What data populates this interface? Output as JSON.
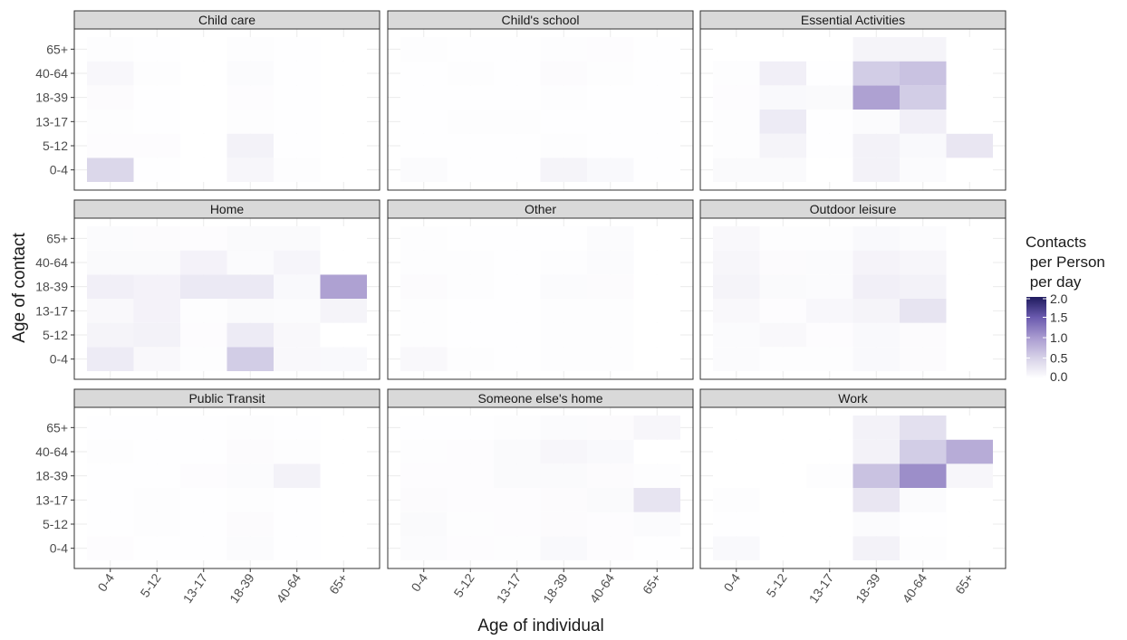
{
  "chart_data": {
    "type": "heatmap",
    "xlabel": "Age of individual",
    "ylabel": "Age of contact",
    "age_groups": [
      "0-4",
      "5-12",
      "13-17",
      "18-39",
      "40-64",
      "65+"
    ],
    "value_range": [
      0,
      2
    ],
    "legend": {
      "title_lines": [
        "Contacts",
        " per Person",
        " per day"
      ],
      "ticks": [
        "2.0",
        "1.5",
        "1.0",
        "0.5",
        "0.0"
      ],
      "tick_values": [
        2.0,
        1.5,
        1.0,
        0.5,
        0.0
      ],
      "low_color": "#ffffff",
      "high_color": "#1f1b5e"
    },
    "grid": true,
    "facets": [
      {
        "title": "Child care",
        "z": [
          [
            0.45,
            0.01,
            0.0,
            0.1,
            0.02,
            0.0
          ],
          [
            0.03,
            0.03,
            0.0,
            0.15,
            0.01,
            0.0
          ],
          [
            0.02,
            0.01,
            0.0,
            0.02,
            0.01,
            0.0
          ],
          [
            0.04,
            0.01,
            0.0,
            0.03,
            0.01,
            0.0
          ],
          [
            0.09,
            0.02,
            0.0,
            0.05,
            0.01,
            0.0
          ],
          [
            0.02,
            0.01,
            0.0,
            0.02,
            0.01,
            0.0
          ]
        ]
      },
      {
        "title": "Child's school",
        "z": [
          [
            0.05,
            0.01,
            0.01,
            0.12,
            0.07,
            0.01
          ],
          [
            0.01,
            0.01,
            0.01,
            0.02,
            0.01,
            0.01
          ],
          [
            0.01,
            0.02,
            0.02,
            0.01,
            0.01,
            0.01
          ],
          [
            0.01,
            0.01,
            0.01,
            0.02,
            0.01,
            0.01
          ],
          [
            0.01,
            0.02,
            0.01,
            0.04,
            0.02,
            0.01
          ],
          [
            0.02,
            0.01,
            0.01,
            0.02,
            0.03,
            0.01
          ]
        ]
      },
      {
        "title": "Essential Activities",
        "z": [
          [
            0.06,
            0.06,
            0.0,
            0.15,
            0.05,
            0.0
          ],
          [
            0.02,
            0.12,
            0.01,
            0.15,
            0.07,
            0.28
          ],
          [
            0.02,
            0.22,
            0.01,
            0.05,
            0.18,
            0.0
          ],
          [
            0.03,
            0.07,
            0.06,
            0.95,
            0.55,
            0.0
          ],
          [
            0.02,
            0.18,
            0.01,
            0.55,
            0.65,
            0.0
          ],
          [
            0.0,
            0.0,
            0.0,
            0.12,
            0.12,
            0.0
          ]
        ]
      },
      {
        "title": "Home",
        "z": [
          [
            0.22,
            0.08,
            0.02,
            0.55,
            0.08,
            0.07
          ],
          [
            0.12,
            0.15,
            0.03,
            0.22,
            0.08,
            0.0
          ],
          [
            0.08,
            0.14,
            0.02,
            0.06,
            0.05,
            0.12
          ],
          [
            0.18,
            0.14,
            0.25,
            0.25,
            0.07,
            0.95
          ],
          [
            0.06,
            0.06,
            0.14,
            0.05,
            0.11,
            0.0
          ],
          [
            0.05,
            0.04,
            0.03,
            0.06,
            0.06,
            0.0
          ]
        ]
      },
      {
        "title": "Other",
        "z": [
          [
            0.08,
            0.02,
            0.01,
            0.02,
            0.02,
            0.0
          ],
          [
            0.02,
            0.01,
            0.01,
            0.02,
            0.02,
            0.0
          ],
          [
            0.02,
            0.01,
            0.01,
            0.02,
            0.02,
            0.0
          ],
          [
            0.04,
            0.02,
            0.01,
            0.05,
            0.04,
            0.0
          ],
          [
            0.02,
            0.02,
            0.01,
            0.02,
            0.05,
            0.0
          ],
          [
            0.02,
            0.01,
            0.01,
            0.01,
            0.05,
            0.0
          ]
        ]
      },
      {
        "title": "Outdoor leisure",
        "z": [
          [
            0.05,
            0.02,
            0.02,
            0.07,
            0.04,
            0.0
          ],
          [
            0.05,
            0.08,
            0.03,
            0.07,
            0.04,
            0.0
          ],
          [
            0.08,
            0.03,
            0.09,
            0.12,
            0.3,
            0.0
          ],
          [
            0.12,
            0.06,
            0.05,
            0.18,
            0.15,
            0.0
          ],
          [
            0.1,
            0.04,
            0.05,
            0.13,
            0.1,
            0.0
          ],
          [
            0.08,
            0.02,
            0.02,
            0.07,
            0.05,
            0.0
          ]
        ]
      },
      {
        "title": "Public Transit",
        "z": [
          [
            0.03,
            0.01,
            0.01,
            0.05,
            0.01,
            0.0
          ],
          [
            0.01,
            0.02,
            0.01,
            0.04,
            0.01,
            0.0
          ],
          [
            0.01,
            0.02,
            0.01,
            0.02,
            0.01,
            0.0
          ],
          [
            0.01,
            0.01,
            0.03,
            0.05,
            0.15,
            0.0
          ],
          [
            0.02,
            0.01,
            0.01,
            0.04,
            0.02,
            0.0
          ],
          [
            0.01,
            0.01,
            0.01,
            0.02,
            0.01,
            0.0
          ]
        ]
      },
      {
        "title": "Someone else's home",
        "z": [
          [
            0.05,
            0.03,
            0.02,
            0.07,
            0.03,
            0.01
          ],
          [
            0.06,
            0.02,
            0.03,
            0.04,
            0.03,
            0.05
          ],
          [
            0.04,
            0.03,
            0.03,
            0.04,
            0.06,
            0.3
          ],
          [
            0.03,
            0.03,
            0.06,
            0.06,
            0.04,
            0.02
          ],
          [
            0.02,
            0.03,
            0.06,
            0.1,
            0.07,
            0.0
          ],
          [
            0.01,
            0.01,
            0.02,
            0.05,
            0.04,
            0.1
          ]
        ]
      },
      {
        "title": "Work",
        "z": [
          [
            0.07,
            0.0,
            0.0,
            0.15,
            0.02,
            0.0
          ],
          [
            0.01,
            0.0,
            0.0,
            0.05,
            0.01,
            0.0
          ],
          [
            0.02,
            0.0,
            0.0,
            0.28,
            0.05,
            0.0
          ],
          [
            0.0,
            0.0,
            0.02,
            0.65,
            1.1,
            0.1
          ],
          [
            0.0,
            0.0,
            0.0,
            0.15,
            0.55,
            0.85
          ],
          [
            0.0,
            0.0,
            0.0,
            0.15,
            0.35,
            0.0
          ]
        ]
      }
    ]
  }
}
